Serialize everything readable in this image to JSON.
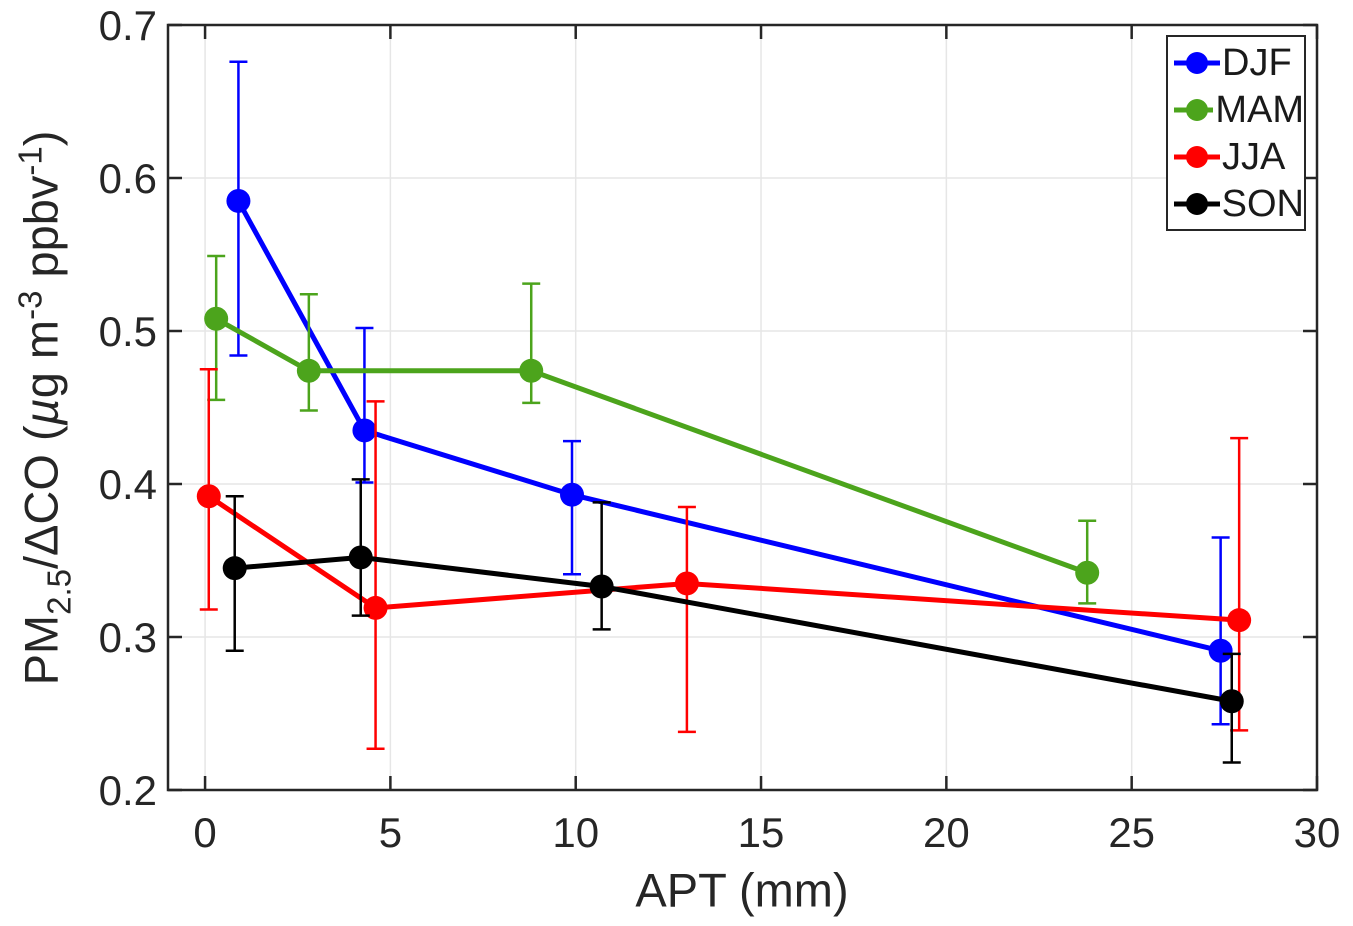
{
  "figure": {
    "background": "#ffffff",
    "axis_color": "#262626",
    "grid_color": "#e6e6e6",
    "tick_label_fontsize": 42,
    "axis_label_fontsize": 47
  },
  "chart_data": {
    "type": "line",
    "title": "",
    "xlabel": "APT (mm)",
    "ylabel": "PM2.5/ΔCO (µg m-3 ppbv-1)",
    "ylabel_parts": [
      {
        "text": "PM",
        "style": "normal"
      },
      {
        "text": "2.5",
        "style": "sub"
      },
      {
        "text": "/ΔCO (",
        "style": "normal"
      },
      {
        "text": "µ",
        "style": "italic"
      },
      {
        "text": "g m",
        "style": "normal"
      },
      {
        "text": "-3",
        "style": "sup"
      },
      {
        "text": " ppbv",
        "style": "normal"
      },
      {
        "text": "-1",
        "style": "sup"
      },
      {
        "text": ")",
        "style": "normal"
      }
    ],
    "xlim": [
      -1,
      30
    ],
    "ylim": [
      0.2,
      0.7
    ],
    "xticks": [
      0,
      5,
      10,
      15,
      20,
      25,
      30
    ],
    "yticks": [
      0.2,
      0.3,
      0.4,
      0.5,
      0.6,
      0.7
    ],
    "grid": true,
    "legend_position": "top-right",
    "marker": "circle-filled",
    "error_bars": true,
    "series": [
      {
        "name": "DJF",
        "color": "#0000ff",
        "x": [
          0.9,
          4.3,
          9.9,
          27.4
        ],
        "y": [
          0.585,
          0.435,
          0.393,
          0.291
        ],
        "err_lo": [
          0.484,
          0.401,
          0.341,
          0.243
        ],
        "err_hi": [
          0.676,
          0.502,
          0.428,
          0.365
        ]
      },
      {
        "name": "MAM",
        "color": "#4ca41c",
        "x": [
          0.3,
          2.8,
          8.8,
          23.8
        ],
        "y": [
          0.508,
          0.474,
          0.474,
          0.342
        ],
        "err_lo": [
          0.455,
          0.448,
          0.453,
          0.322
        ],
        "err_hi": [
          0.549,
          0.524,
          0.531,
          0.376
        ]
      },
      {
        "name": "JJA",
        "color": "#ff0000",
        "x": [
          0.1,
          4.6,
          13.0,
          27.9
        ],
        "y": [
          0.392,
          0.319,
          0.335,
          0.311
        ],
        "err_lo": [
          0.318,
          0.227,
          0.238,
          0.239
        ],
        "err_hi": [
          0.475,
          0.454,
          0.385,
          0.43
        ]
      },
      {
        "name": "SON",
        "color": "#000000",
        "x": [
          0.8,
          4.2,
          10.7,
          27.7
        ],
        "y": [
          0.345,
          0.352,
          0.333,
          0.258
        ],
        "err_lo": [
          0.291,
          0.314,
          0.305,
          0.218
        ],
        "err_hi": [
          0.392,
          0.403,
          0.388,
          0.289
        ]
      }
    ]
  }
}
